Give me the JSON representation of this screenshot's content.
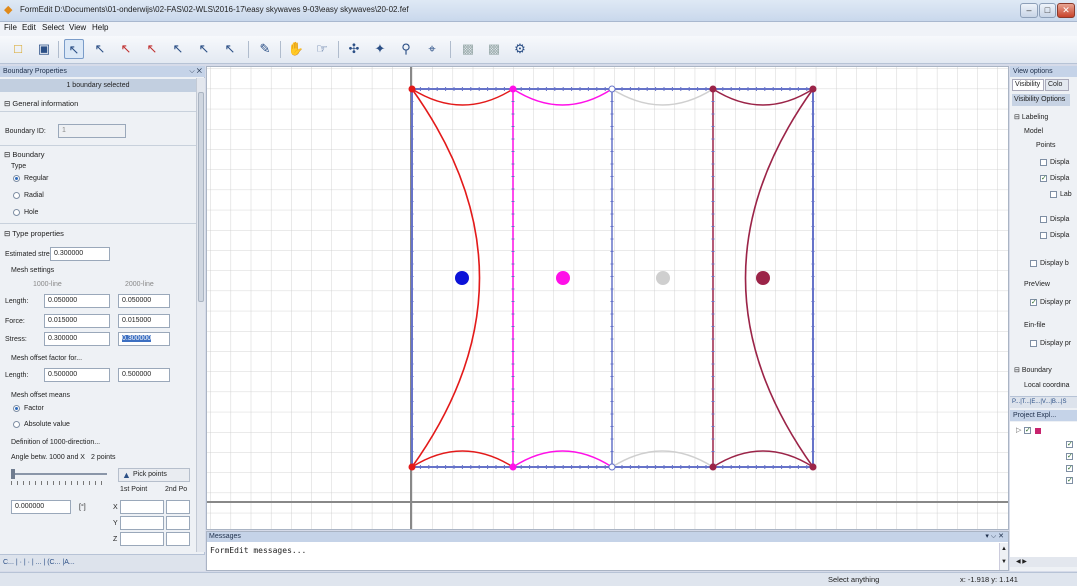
{
  "window": {
    "title": "FormEdit D:\\Documents\\01-onderwijs\\02-FAS\\02-WLS\\2016-17\\easy skywaves 9-03\\easy skywaves\\20-02.fef"
  },
  "menu": [
    "File",
    "Edit",
    "Select",
    "View",
    "Help"
  ],
  "toolbar": {
    "icons": [
      "open-folder-icon",
      "save-icon",
      "select-arrow-icon",
      "select-point-icon",
      "select-arrow-red-icon",
      "select-arrow-blue-icon",
      "select-arrow-2-icon",
      "select-arrow-3-icon",
      "select-arrow-4-icon",
      "pencil-line-icon",
      "hand-pan-icon",
      "hand-tool-icon",
      "move-nodes-icon",
      "scale-nodes-icon",
      "zoom-icon",
      "fit-icon",
      "copy-icon",
      "paste-icon",
      "mesh-settings-icon"
    ]
  },
  "boundary_panel": {
    "title": "Boundary Properties",
    "pin": "⌵ ✕",
    "selection_info": "1 boundary selected",
    "general_section": "General information",
    "boundary_id_label": "Boundary ID:",
    "boundary_id_value": "1",
    "boundary_section": "Boundary",
    "type_label": "Type",
    "type_options": [
      "Regular",
      "Radial",
      "Hole"
    ],
    "type_selected": "Regular",
    "type_props_section": "Type properties",
    "estimated_stress_label": "Estimated stress:",
    "estimated_stress_value": "0.300000",
    "mesh_settings_label": "Mesh settings",
    "col1_header": "1000-line",
    "col2_header": "2000-line",
    "length_label": "Length:",
    "length_1000": "0.050000",
    "length_2000": "0.050000",
    "force_label": "Force:",
    "force_1000": "0.015000",
    "force_2000": "0.015000",
    "stress_label": "Stress:",
    "stress_1000": "0.300000",
    "stress_2000": "0.300000",
    "mesh_offset_factor_label": "Mesh offset factor for...",
    "offset_length_label": "Length:",
    "offset_length_1000": "0.500000",
    "offset_length_2000": "0.500000",
    "mesh_offset_means_label": "Mesh offset means",
    "means_options": [
      "Factor",
      "Absolute value"
    ],
    "means_selected": "Factor",
    "definition_label": "Definition of 1000-direction...",
    "angle_label": "Angle betw. 1000 and X",
    "points_label": "2 points",
    "pick_points_button": "Pick points",
    "first_point_label": "1st Point",
    "second_point_label": "2nd Po",
    "angle_value": "0.000000",
    "angle_unit": "[°]",
    "axis_x": "X",
    "axis_y": "Y",
    "axis_z": "Z",
    "bottom_tabs": "C... | · | · | ... | (C... |A..."
  },
  "messages": {
    "title": "Messages",
    "controls": "▾ ⌵ ✕",
    "text": "FormEdit messages..."
  },
  "view_options": {
    "title": "View options",
    "tabs": [
      "Visibility",
      "Colo"
    ],
    "header": "Visibility Options",
    "labeling": "Labeling",
    "model": "Model",
    "points": "Points",
    "display1": "Displa",
    "display2": "Displa",
    "lab": "Lab",
    "display3": "Displa",
    "display4": "Displa",
    "display_b": "Display b",
    "preview": "PreView",
    "display_pr": "Display pr",
    "ein_file": "Ein-file",
    "display_pr2": "Display pr",
    "boundary": "Boundary",
    "local_coord": "Local coordina",
    "bottom_tabs": "P...|T...|E...|V...|B...|S"
  },
  "project_explorer": {
    "title": "Project Expl...",
    "pin": "⌵ ✕"
  },
  "status": {
    "message": "Select anything",
    "coords": "x: -1.918  y: 1.141"
  },
  "colors": {
    "boundary_red": "#e31a1a",
    "boundary_magenta": "#ff10e8",
    "boundary_gray": "#cfcfcf",
    "boundary_maroon": "#9b2448",
    "frame_blue": "#6673c9",
    "blue_marker": "#0b12d8",
    "axis_gray": "#888888"
  }
}
